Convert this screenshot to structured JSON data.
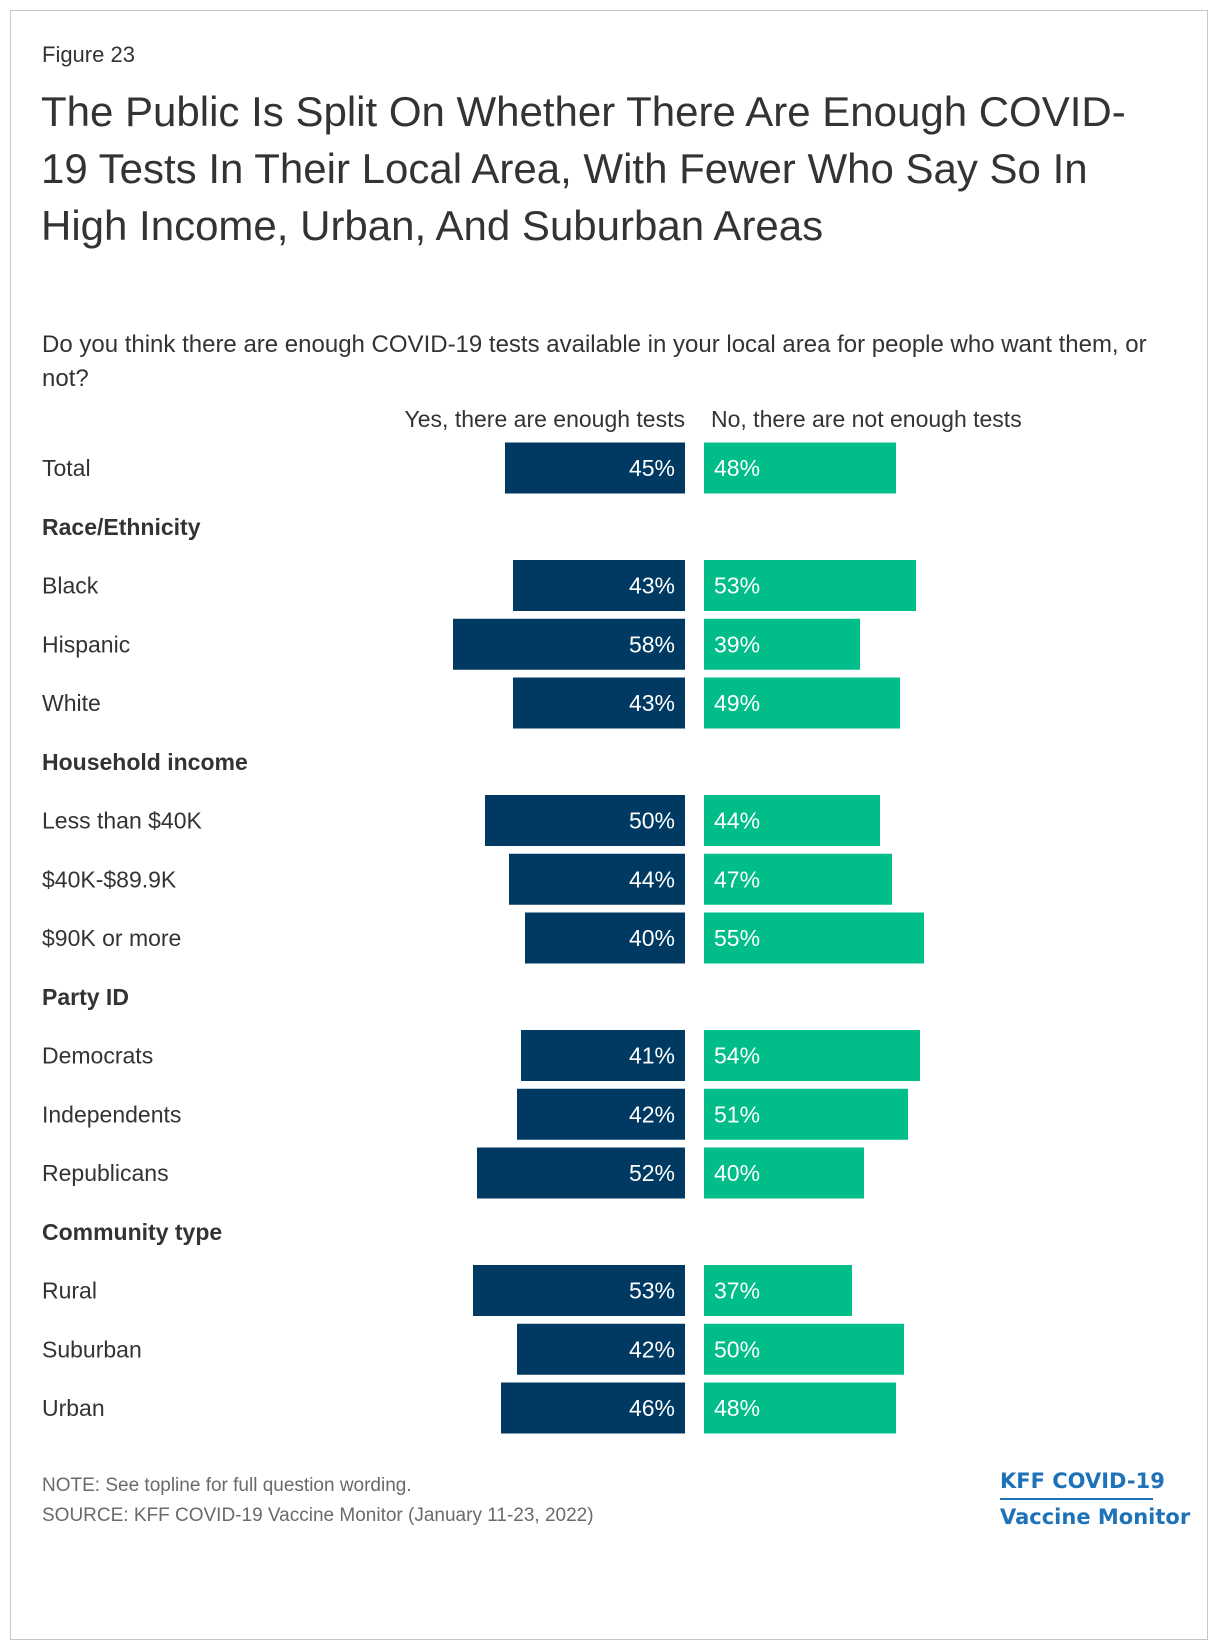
{
  "figure_label": "Figure 23",
  "title": "The Public Is Split On Whether There Are Enough COVID-19 Tests In Their Local Area, With Fewer Who Say So In High Income, Urban, And Suburban Areas",
  "subtitle": "Do you think there are enough COVID-19 tests available in your local area for people who want them, or not?",
  "colors": {
    "yes": "#003a63",
    "no": "#00bd8a",
    "text": "#333333",
    "note": "#6a6a6a",
    "logo": "#1e73b8"
  },
  "chart_data": {
    "type": "bar",
    "orientation": "horizontal-diverging",
    "series": [
      {
        "name": "Yes, there are enough tests",
        "key": "yes"
      },
      {
        "name": "No, there are not enough tests",
        "key": "no"
      }
    ],
    "unit": "%",
    "rows": [
      {
        "label": "Total",
        "header": false,
        "yes": 45,
        "no": 48
      },
      {
        "label": "Race/Ethnicity",
        "header": true
      },
      {
        "label": "Black",
        "header": false,
        "yes": 43,
        "no": 53
      },
      {
        "label": "Hispanic",
        "header": false,
        "yes": 58,
        "no": 39
      },
      {
        "label": "White",
        "header": false,
        "yes": 43,
        "no": 49
      },
      {
        "label": "Household income",
        "header": true
      },
      {
        "label": "Less than $40K",
        "header": false,
        "yes": 50,
        "no": 44
      },
      {
        "label": "$40K-$89.9K",
        "header": false,
        "yes": 44,
        "no": 47
      },
      {
        "label": "$90K or more",
        "header": false,
        "yes": 40,
        "no": 55
      },
      {
        "label": "Party ID",
        "header": true
      },
      {
        "label": "Democrats",
        "header": false,
        "yes": 41,
        "no": 54
      },
      {
        "label": "Independents",
        "header": false,
        "yes": 42,
        "no": 51
      },
      {
        "label": "Republicans",
        "header": false,
        "yes": 52,
        "no": 40
      },
      {
        "label": "Community type",
        "header": true
      },
      {
        "label": "Rural",
        "header": false,
        "yes": 53,
        "no": 37
      },
      {
        "label": "Suburban",
        "header": false,
        "yes": 42,
        "no": 50
      },
      {
        "label": "Urban",
        "header": false,
        "yes": 46,
        "no": 48
      }
    ]
  },
  "footer": {
    "note": "NOTE: See topline for full question wording.",
    "source": "SOURCE: KFF COVID-19 Vaccine Monitor (January 11-23, 2022)"
  },
  "logo": {
    "line1": "KFF COVID-19",
    "line2": "Vaccine Monitor"
  }
}
